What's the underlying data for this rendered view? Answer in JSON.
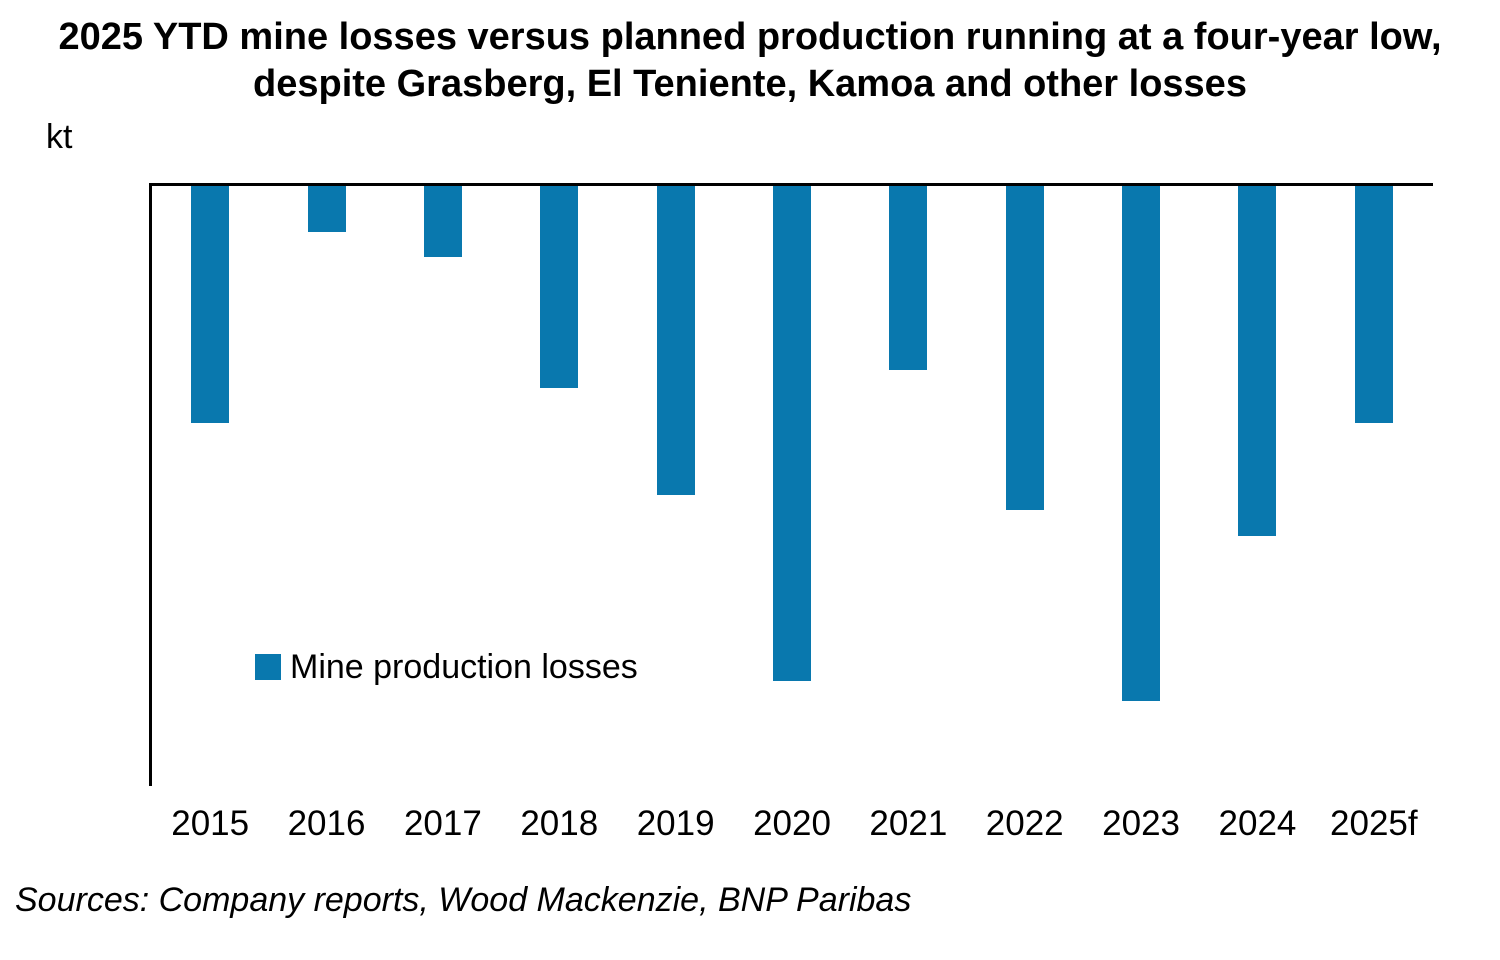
{
  "title": {
    "line1": "2025 YTD mine losses versus planned production running at a four-year low,",
    "line2": "despite Grasberg, El Teniente, Kamoa and other losses"
  },
  "y_axis": {
    "unit_label": "kt",
    "ticks": [
      0,
      -200,
      -400,
      -600,
      -800,
      -1000,
      -1200,
      -1400,
      -1600,
      -1800
    ]
  },
  "legend": {
    "label": "Mine production losses"
  },
  "source_note": "Sources: Company reports, Wood Mackenzie, BNP Paribas",
  "colors": {
    "bar": "#0978AE",
    "axis": "#000000",
    "text": "#000000"
  },
  "chart_data": {
    "type": "bar",
    "title": "2025 YTD mine losses versus planned production running at a four-year low, despite Grasberg, El Teniente, Kamoa and other losses",
    "categories": [
      "2015",
      "2016",
      "2017",
      "2018",
      "2019",
      "2020",
      "2021",
      "2022",
      "2023",
      "2024",
      "2025f"
    ],
    "series": [
      {
        "name": "Mine production losses",
        "values": [
          -720,
          -145,
          -220,
          -615,
          -935,
          -1495,
          -560,
          -980,
          -1555,
          -1060,
          -720
        ]
      }
    ],
    "xlabel": "",
    "ylabel": "kt",
    "ylim": [
      -1800,
      0
    ],
    "ytick_step": 200,
    "grid": false,
    "legend_position": "inside-lower-left",
    "bar_color": "#0978AE"
  }
}
